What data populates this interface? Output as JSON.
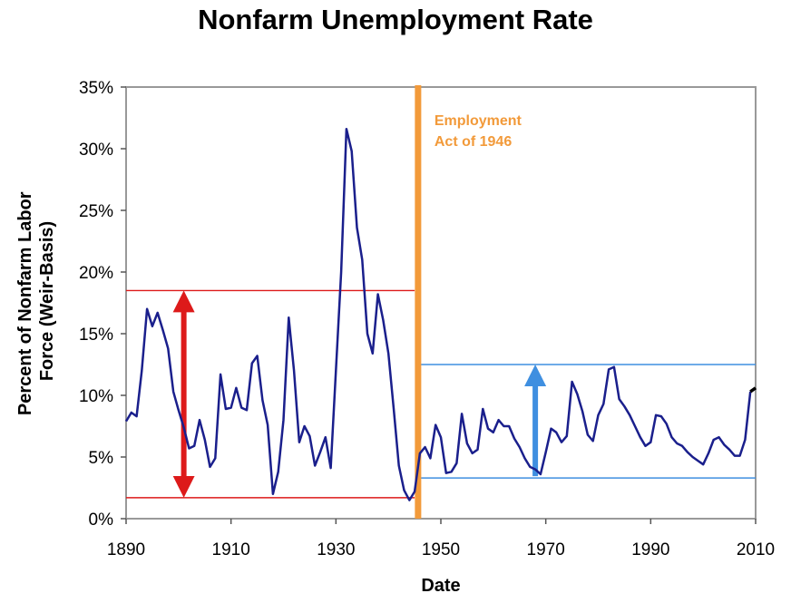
{
  "chart_data": {
    "type": "line",
    "title": "Nonfarm Unemployment Rate",
    "xlabel": "Date",
    "ylabel_lines": [
      "Percent of Nonfarm Labor",
      "Force (Weir-Basis)"
    ],
    "xlim": [
      1890,
      2010
    ],
    "ylim": [
      0,
      35
    ],
    "x_ticks": [
      1890,
      1910,
      1930,
      1950,
      1970,
      1990,
      2010
    ],
    "y_ticks": [
      0,
      5,
      10,
      15,
      20,
      25,
      30,
      35
    ],
    "x_tick_labels": [
      "1890",
      "1910",
      "1930",
      "1950",
      "1970",
      "1990",
      "2010"
    ],
    "y_tick_labels": [
      "0%",
      "5%",
      "10%",
      "15%",
      "20%",
      "25%",
      "30%",
      "35%"
    ],
    "grid": false,
    "series": [
      {
        "color": "#1a1f8c",
        "x": [
          1890,
          1891,
          1892,
          1893,
          1894,
          1895,
          1896,
          1897,
          1898,
          1899,
          1900,
          1901,
          1902,
          1903,
          1904,
          1905,
          1906,
          1907,
          1908,
          1909,
          1910,
          1911,
          1912,
          1913,
          1914,
          1915,
          1916,
          1917,
          1918,
          1919,
          1920,
          1921,
          1922,
          1923,
          1924,
          1925,
          1926,
          1927,
          1928,
          1929,
          1930,
          1931,
          1932,
          1933,
          1934,
          1935,
          1936,
          1937,
          1938,
          1939,
          1940,
          1941,
          1942,
          1943,
          1944,
          1945,
          1946,
          1947,
          1948,
          1949,
          1950,
          1951,
          1952,
          1953,
          1954,
          1955,
          1956,
          1957,
          1958,
          1959,
          1960,
          1961,
          1962,
          1963,
          1964,
          1965,
          1966,
          1967,
          1968,
          1969,
          1970,
          1971,
          1972,
          1973,
          1974,
          1975,
          1976,
          1977,
          1978,
          1979,
          1980,
          1981,
          1982,
          1983,
          1984,
          1985,
          1986,
          1987,
          1988,
          1989,
          1990,
          1991,
          1992,
          1993,
          1994,
          1995,
          1996,
          1997,
          1998,
          1999,
          2000,
          2001,
          2002,
          2003,
          2004,
          2005,
          2006,
          2007,
          2008,
          2009
        ],
        "y": [
          7.9,
          8.6,
          8.3,
          12.0,
          17.0,
          15.6,
          16.7,
          15.3,
          13.8,
          10.3,
          8.8,
          7.4,
          5.7,
          5.9,
          8.0,
          6.4,
          4.2,
          4.9,
          11.7,
          8.9,
          9.0,
          10.6,
          9.0,
          8.8,
          12.6,
          13.2,
          9.6,
          7.6,
          2.0,
          3.8,
          8.0,
          16.3,
          12.0,
          6.2,
          7.5,
          6.7,
          4.3,
          5.4,
          6.6,
          4.1,
          12.0,
          20.0,
          31.6,
          29.8,
          23.6,
          21.0,
          15.0,
          13.4,
          18.2,
          16.1,
          13.4,
          9.0,
          4.3,
          2.3,
          1.5,
          2.2,
          5.3,
          5.8,
          4.9,
          7.6,
          6.6,
          3.7,
          3.8,
          4.5,
          8.5,
          6.1,
          5.3,
          5.6,
          8.9,
          7.3,
          7.0,
          8.0,
          7.5,
          7.5,
          6.5,
          5.8,
          4.9,
          4.2,
          4.0,
          3.6,
          5.4,
          7.3,
          7.0,
          6.2,
          6.7,
          11.1,
          10.1,
          8.7,
          6.8,
          6.3,
          8.4,
          9.3,
          12.1,
          12.3,
          9.7,
          9.1,
          8.4,
          7.5,
          6.6,
          5.9,
          6.2,
          8.4,
          8.3,
          7.7,
          6.6,
          6.1,
          5.9,
          5.4,
          5.0,
          4.7,
          4.4,
          5.3,
          6.4,
          6.6,
          6.0,
          5.6,
          5.1,
          5.1,
          6.4,
          10.3
        ]
      }
    ],
    "series_tail": {
      "color": "#000000",
      "x": [
        2009,
        2010
      ],
      "y": [
        10.3,
        10.6
      ]
    },
    "annotations": {
      "policy_line": {
        "x": 1946,
        "color": "#f29a3a",
        "label_lines": [
          "Employment",
          "Act of 1946"
        ]
      },
      "pre_range": {
        "x": [
          1890,
          1945
        ],
        "y_high": 18.5,
        "y_low": 1.7,
        "arrow_x": 1901,
        "color": "#dd1a1a"
      },
      "post_range": {
        "x": [
          1946,
          2010
        ],
        "y_high": 12.5,
        "y_low": 3.3,
        "arrow_x": 1968,
        "color": "#3f8fe0"
      }
    }
  }
}
